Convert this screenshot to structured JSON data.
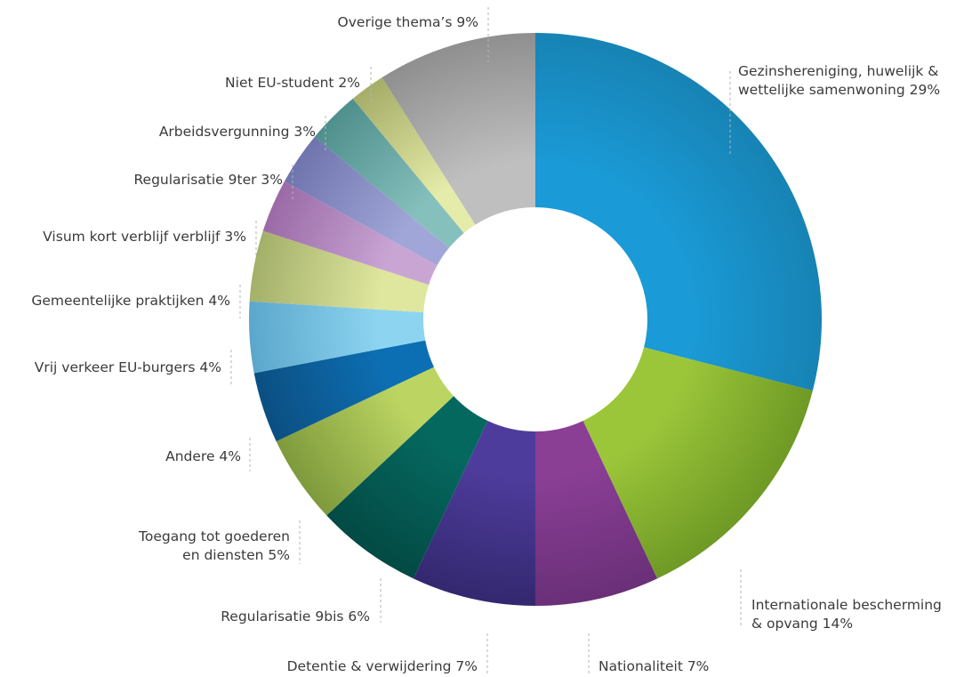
{
  "chart_data": {
    "type": "pie",
    "title": "",
    "unit": "%",
    "slices": [
      {
        "label": "Gezinshereniging, huwelijk & wettelijke samenwoning",
        "text": [
          "Gezinshereniging, huwelijk &",
          "wettelijke samenwoning 29%"
        ],
        "value": 29,
        "color": "#1a9ad6",
        "color_dark": "#1783b4"
      },
      {
        "label": "Internationale bescherming & opvang",
        "text": [
          "Internationale bescherming",
          "& opvang 14%"
        ],
        "value": 14,
        "color": "#9cc63a",
        "color_dark": "#6e9a25"
      },
      {
        "label": "Nationaliteit",
        "text": [
          "Nationaliteit 7%"
        ],
        "value": 7,
        "color": "#8a3f95",
        "color_dark": "#6a2f78"
      },
      {
        "label": "Detentie & verwijdering",
        "text": [
          "Detentie & verwijdering 7%"
        ],
        "value": 7,
        "color": "#4e3c9c",
        "color_dark": "#33286f"
      },
      {
        "label": "Regularisatie 9bis",
        "text": [
          "Regularisatie 9bis 6%"
        ],
        "value": 6,
        "color": "#05685f",
        "color_dark": "#034a44"
      },
      {
        "label": "Toegang tot goederen en diensten",
        "text": [
          "Toegang tot goederen",
          "en diensten 5%"
        ],
        "value": 5,
        "color": "#bcd562",
        "color_dark": "#7e9a3c"
      },
      {
        "label": "Andere",
        "text": [
          "Andere 4%"
        ],
        "value": 4,
        "color": "#0d6fb3",
        "color_dark": "#0b4f82"
      },
      {
        "label": "Vrij verkeer EU-burgers",
        "text": [
          "Vrij verkeer EU-burgers 4%"
        ],
        "value": 4,
        "color": "#8dd4f0",
        "color_dark": "#5ba7cc"
      },
      {
        "label": "Gemeentelijke praktijken",
        "text": [
          "Gemeentelijke praktijken 4%"
        ],
        "value": 4,
        "color": "#dfe69e",
        "color_dark": "#a3b06a"
      },
      {
        "label": "Visum kort verblijf verblijf",
        "text": [
          "Visum kort verblijf verblijf 3%"
        ],
        "value": 3,
        "color": "#c9a5d4",
        "color_dark": "#9a6aa6"
      },
      {
        "label": "Regularisatie 9ter",
        "text": [
          "Regularisatie 9ter 3%"
        ],
        "value": 3,
        "color": "#a1a6d8",
        "color_dark": "#6f74ad"
      },
      {
        "label": "Arbeidsvergunning",
        "text": [
          "Arbeidsvergunning 3%"
        ],
        "value": 3,
        "color": "#86c0bd",
        "color_dark": "#4f8f8c"
      },
      {
        "label": "Niet EU-student",
        "text": [
          "Niet EU-student 2%"
        ],
        "value": 2,
        "color": "#e5eba8",
        "color_dark": "#a6ad68"
      },
      {
        "label": "Overige thema's",
        "text": [
          "Overige thema’s 9%"
        ],
        "value": 9,
        "color": "#bfbfbf",
        "color_dark": "#8f8f8f"
      }
    ]
  }
}
